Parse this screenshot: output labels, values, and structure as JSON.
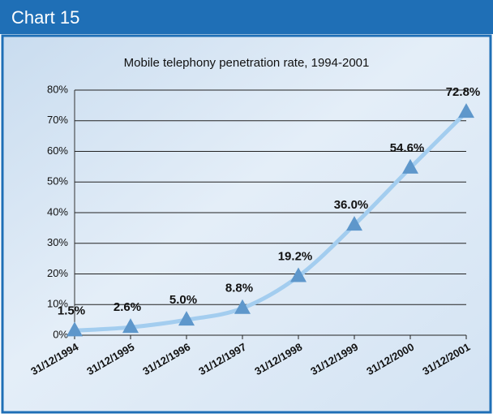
{
  "header": {
    "title": "Chart 15"
  },
  "chart_data": {
    "type": "line",
    "title": "Mobile telephony penetration rate, 1994-2001",
    "categories": [
      "31/12/1994",
      "31/12/1995",
      "31/12/1996",
      "31/12/1997",
      "31/12/1998",
      "31/12/1999",
      "31/12/2000",
      "31/12/2001"
    ],
    "series": [
      {
        "color": "#a3cdef",
        "marker_color": "#5e97cb",
        "values": [
          1.5,
          2.6,
          5.0,
          8.8,
          19.2,
          36.0,
          54.6,
          72.8
        ],
        "value_labels": [
          "1.5%",
          "2.6%",
          "5.0%",
          "8.8%",
          "19.2%",
          "36.0%",
          "54.6%",
          "72.8%"
        ]
      }
    ],
    "ylim": [
      0,
      80
    ],
    "yticks": [
      {
        "value": 0,
        "label": "0%"
      },
      {
        "value": 10,
        "label": "10%"
      },
      {
        "value": 20,
        "label": "20%"
      },
      {
        "value": 30,
        "label": "30%"
      },
      {
        "value": 40,
        "label": "40%"
      },
      {
        "value": 50,
        "label": "50%"
      },
      {
        "value": 60,
        "label": "60%"
      },
      {
        "value": 70,
        "label": "70%"
      },
      {
        "value": 80,
        "label": "80%"
      }
    ],
    "grid": true
  }
}
